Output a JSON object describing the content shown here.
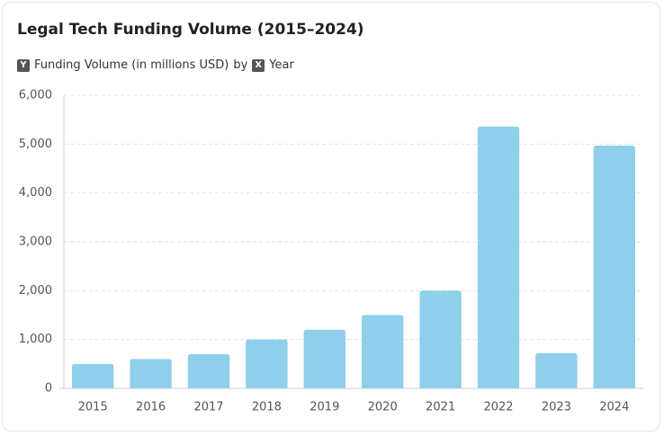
{
  "chart_data": {
    "type": "bar",
    "title": "Legal Tech Funding Volume (2015–2024)",
    "subtitle": {
      "y_badge": "Y",
      "y_label": "Funding Volume (in millions USD)",
      "by": "by",
      "x_badge": "X",
      "x_label": "Year"
    },
    "categories": [
      "2015",
      "2016",
      "2017",
      "2018",
      "2019",
      "2020",
      "2021",
      "2022",
      "2023",
      "2024"
    ],
    "values": [
      500,
      600,
      700,
      1000,
      1200,
      1500,
      2000,
      5360,
      720,
      4970
    ],
    "color": "#8fcfeb",
    "ylim": [
      0,
      6000
    ],
    "yticks": [
      0,
      {
        "value": 1000,
        "label": "1,000"
      },
      {
        "value": 2000,
        "label": "2,000"
      },
      {
        "value": 3000,
        "label": "3,000"
      },
      {
        "value": 4000,
        "label": "4,000"
      },
      {
        "value": 5000,
        "label": "5,000"
      },
      {
        "value": 6000,
        "label": "6,000"
      }
    ],
    "grid": true
  }
}
